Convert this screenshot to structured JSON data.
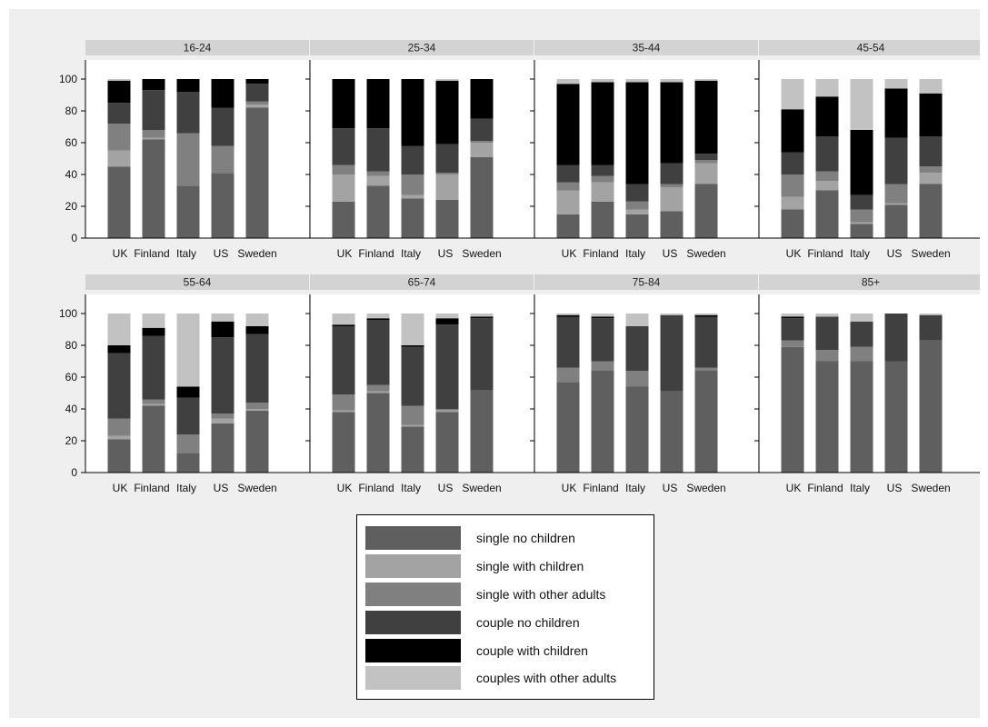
{
  "colors": {
    "single no children": "#5f5f5f",
    "single with children": "#a3a3a3",
    "single with other adults": "#808080",
    "couple no children": "#404040",
    "couple with children": "#000000",
    "couples with other adults": "#c2c2c2"
  },
  "legend": {
    "items": [
      {
        "label": "single no children"
      },
      {
        "label": "single with children"
      },
      {
        "label": "single with other adults"
      },
      {
        "label": "couple no children"
      },
      {
        "label": "couple with children"
      },
      {
        "label": "couples with other adults"
      }
    ]
  },
  "chart_data": {
    "type": "bar",
    "stacked": true,
    "panels_order": [
      "16-24",
      "25-34",
      "35-44",
      "45-54",
      "55-64",
      "65-74",
      "75-84",
      "85+"
    ],
    "categories": [
      "UK",
      "Finland",
      "Italy",
      "US",
      "Sweden"
    ],
    "series_names": [
      "single no children",
      "single with children",
      "single with other adults",
      "couple no children",
      "couple with children",
      "couples with other adults"
    ],
    "y_ticks": [
      0,
      20,
      40,
      60,
      80,
      100
    ],
    "ylim": [
      0,
      112
    ],
    "grid": false,
    "legend_position": "bottom",
    "panels": [
      {
        "title": "16-24",
        "values": {
          "UK": [
            45,
            10,
            17,
            13,
            14,
            1
          ],
          "Finland": [
            62,
            1,
            5,
            25,
            7,
            0
          ],
          "Italy": [
            33,
            0,
            33,
            26,
            8,
            0
          ],
          "US": [
            41,
            0,
            17,
            24,
            18,
            0
          ],
          "Sweden": [
            82,
            2,
            2,
            11,
            3,
            0
          ]
        }
      },
      {
        "title": "25-34",
        "values": {
          "UK": [
            23,
            17,
            6,
            23,
            31,
            0
          ],
          "Finland": [
            33,
            6,
            3,
            27,
            31,
            0
          ],
          "Italy": [
            25,
            2,
            13,
            18,
            42,
            0
          ],
          "US": [
            24,
            16,
            1,
            18,
            40,
            1
          ],
          "Sweden": [
            51,
            9,
            1,
            14,
            25,
            0
          ]
        }
      },
      {
        "title": "35-44",
        "values": {
          "UK": [
            15,
            15,
            5,
            11,
            51,
            3
          ],
          "Finland": [
            23,
            12,
            4,
            7,
            52,
            2
          ],
          "Italy": [
            15,
            3,
            5,
            11,
            64,
            2
          ],
          "US": [
            17,
            15,
            2,
            13,
            51,
            2
          ],
          "Sweden": [
            34,
            13,
            2,
            4,
            46,
            1
          ]
        }
      },
      {
        "title": "45-54",
        "values": {
          "UK": [
            18,
            8,
            14,
            14,
            27,
            19
          ],
          "Finland": [
            30,
            6,
            6,
            22,
            25,
            11
          ],
          "Italy": [
            9,
            1,
            8,
            9,
            41,
            32
          ],
          "US": [
            21,
            1,
            12,
            29,
            31,
            6
          ],
          "Sweden": [
            34,
            7,
            4,
            19,
            27,
            9
          ]
        }
      },
      {
        "title": "55-64",
        "values": {
          "UK": [
            21,
            2,
            11,
            41,
            5,
            20
          ],
          "Finland": [
            42,
            1,
            3,
            40,
            5,
            9
          ],
          "Italy": [
            12,
            0,
            12,
            23,
            7,
            46
          ],
          "US": [
            31,
            3,
            3,
            48,
            10,
            5
          ],
          "Sweden": [
            39,
            1,
            4,
            43,
            5,
            8
          ]
        }
      },
      {
        "title": "65-74",
        "values": {
          "UK": [
            38,
            1,
            10,
            43,
            1,
            7
          ],
          "Finland": [
            50,
            1,
            4,
            41,
            1,
            3
          ],
          "Italy": [
            29,
            1,
            12,
            37,
            1,
            20
          ],
          "US": [
            38,
            1,
            1,
            53,
            4,
            3
          ],
          "Sweden": [
            52,
            0,
            0,
            45,
            1,
            2
          ]
        }
      },
      {
        "title": "75-84",
        "values": {
          "UK": [
            57,
            0,
            9,
            32,
            1,
            1
          ],
          "Finland": [
            64,
            0,
            6,
            27,
            1,
            2
          ],
          "Italy": [
            54,
            0,
            10,
            28,
            0,
            8
          ],
          "US": [
            51,
            0,
            0,
            48,
            0,
            1
          ],
          "Sweden": [
            64,
            0,
            2,
            32,
            1,
            1
          ]
        }
      },
      {
        "title": "85+",
        "values": {
          "UK": [
            79,
            0,
            4,
            14,
            1,
            2
          ],
          "Finland": [
            70,
            0,
            7,
            21,
            0,
            2
          ],
          "Italy": [
            70,
            0,
            9,
            16,
            0,
            5
          ],
          "US": [
            70,
            0,
            0,
            30,
            0,
            0
          ],
          "Sweden": [
            83,
            0,
            0,
            16,
            0,
            1
          ]
        }
      }
    ]
  }
}
